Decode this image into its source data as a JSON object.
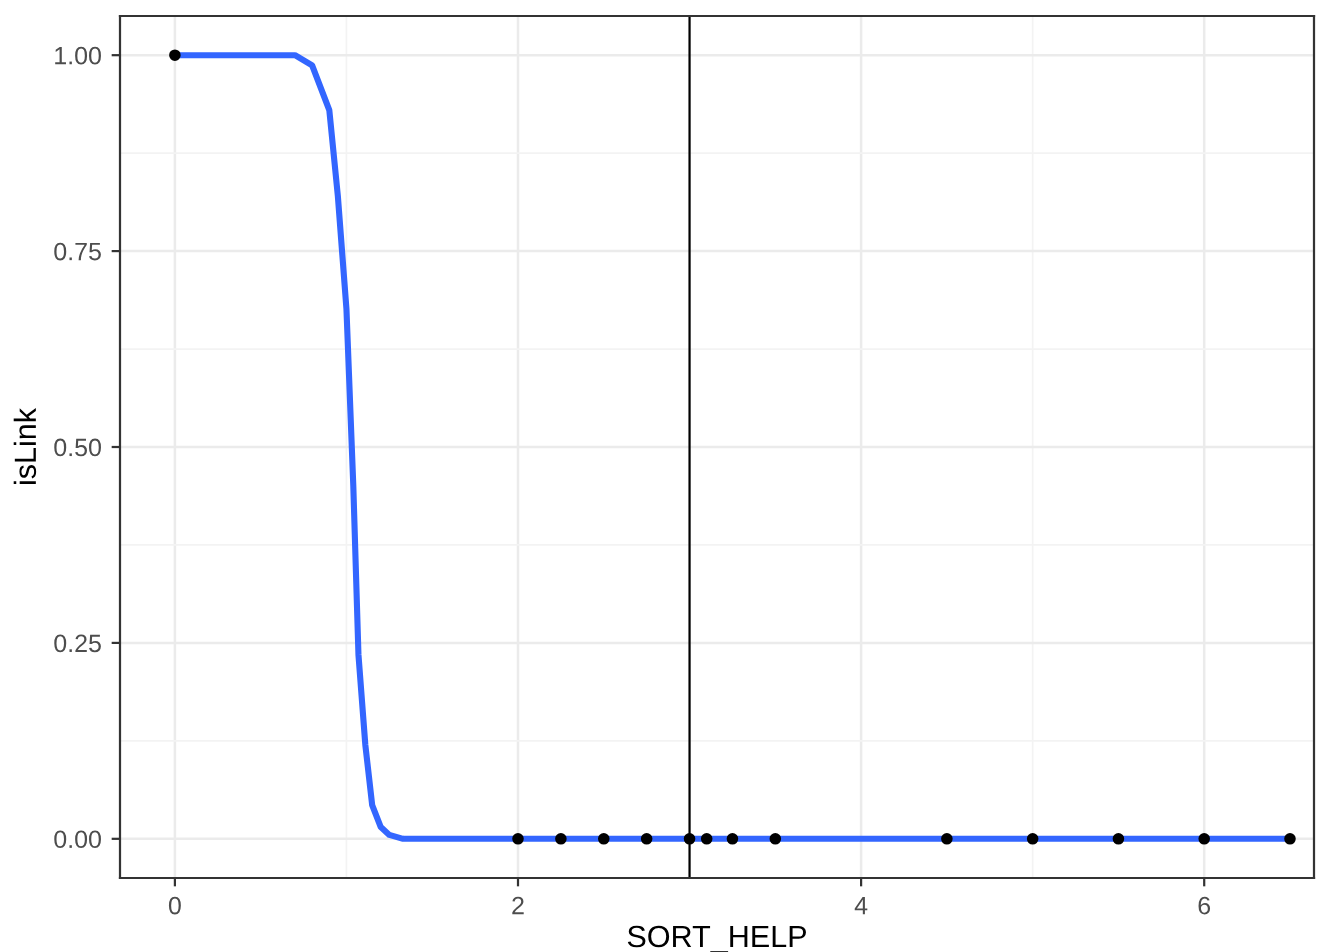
{
  "chart_data": {
    "type": "scatter",
    "xlabel": "SORT_HELP",
    "ylabel": "isLink",
    "xlim": [
      -0.32,
      6.64
    ],
    "ylim": [
      -0.05,
      1.05
    ],
    "xticks": [
      0,
      2,
      4,
      6
    ],
    "yticks": [
      {
        "value": 0,
        "label": "0.00"
      },
      {
        "value": 0.25,
        "label": "0.25"
      },
      {
        "value": 0.5,
        "label": "0.50"
      },
      {
        "value": 0.75,
        "label": "0.75"
      },
      {
        "value": 1,
        "label": "1.00"
      }
    ],
    "grid": true,
    "legend": false,
    "series": [
      {
        "color": "#000000",
        "marker": "circle",
        "x": [
          0,
          2,
          2.25,
          2.5,
          2.75,
          3,
          3.1,
          3.25,
          3.5,
          4.5,
          5,
          5.5,
          6,
          6.5
        ],
        "values": [
          1,
          0,
          0,
          0,
          0,
          0,
          0,
          0,
          0,
          0,
          0,
          0,
          0,
          0
        ]
      },
      {
        "type": "line",
        "color": "#3366ff",
        "marker": "none",
        "line_style": "solid",
        "x": [
          0,
          0.5,
          0.7,
          0.8,
          0.9,
          0.95,
          1.0,
          1.04,
          1.07,
          1.11,
          1.15,
          1.2,
          1.25,
          1.33,
          2,
          4,
          6.5
        ],
        "values": [
          1,
          1,
          1,
          0.987,
          0.93,
          0.82,
          0.676,
          0.45,
          0.235,
          0.12,
          0.043,
          0.015,
          0.005,
          0,
          0,
          0,
          0
        ]
      }
    ],
    "ref_lines": [
      {
        "axis": "x",
        "value": 3,
        "color": "#000000",
        "line_style": "solid"
      }
    ]
  }
}
